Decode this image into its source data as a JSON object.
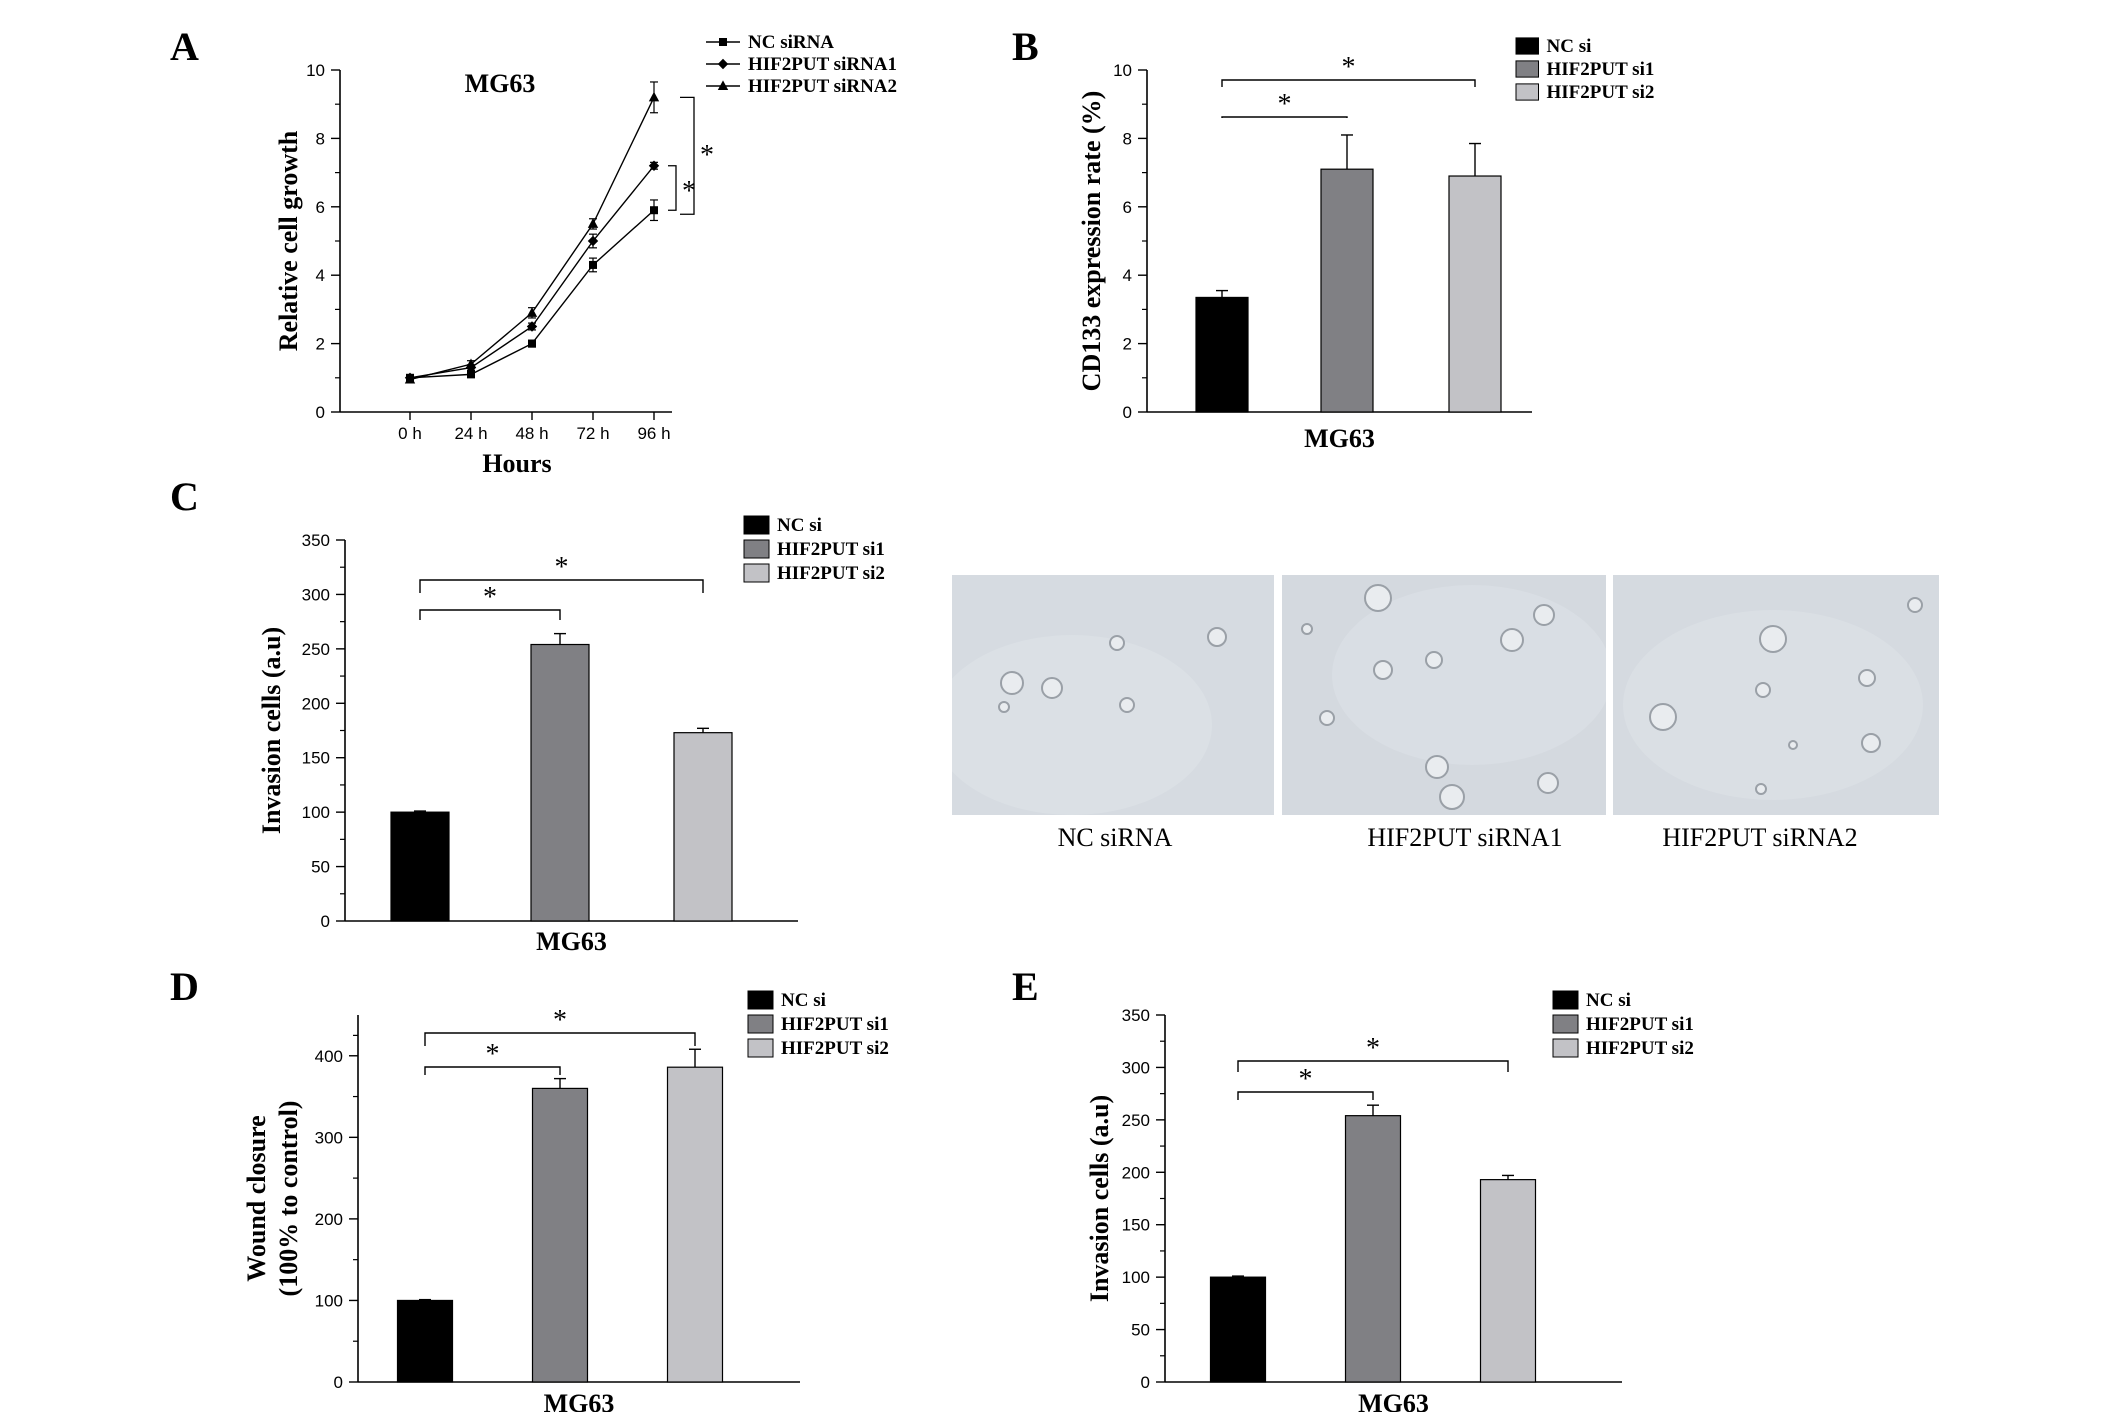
{
  "panels": {
    "A": "A",
    "B": "B",
    "C": "C",
    "D": "D",
    "E": "E"
  },
  "images": {
    "captions": [
      "NC siRNA",
      "HIF2PUT siRNA1",
      "HIF2PUT siRNA2"
    ]
  },
  "colors": {
    "black": "#000000",
    "dark_gray": "#808084",
    "light_gray": "#c2c2c6",
    "micro_bg": "#d4d9df"
  },
  "chart_data": [
    {
      "id": "A",
      "type": "line",
      "title": "MG63",
      "xlabel": "Hours",
      "ylabel": "Relative cell growth",
      "categories": [
        "0 h",
        "24 h",
        "48 h",
        "72 h",
        "96 h"
      ],
      "ylim": [
        0,
        10
      ],
      "yticks": [
        0,
        2,
        4,
        6,
        8,
        10
      ],
      "legend_position": "top-right",
      "series": [
        {
          "name": "NC siRNA",
          "marker": "square",
          "values": [
            1.0,
            1.1,
            2.0,
            4.3,
            5.9
          ],
          "errors": [
            0.05,
            0.08,
            0.1,
            0.2,
            0.3
          ]
        },
        {
          "name": "HIF2PUT siRNA1",
          "marker": "diamond",
          "values": [
            1.0,
            1.3,
            2.5,
            5.0,
            7.2
          ],
          "errors": [
            0.05,
            0.08,
            0.1,
            0.2,
            0.1
          ]
        },
        {
          "name": "HIF2PUT siRNA2",
          "marker": "triangle",
          "values": [
            0.95,
            1.4,
            2.9,
            5.5,
            9.2
          ],
          "errors": [
            0.05,
            0.1,
            0.15,
            0.15,
            0.45
          ]
        }
      ],
      "significance": [
        "*",
        "*"
      ]
    },
    {
      "id": "B",
      "type": "bar",
      "xlabel": "MG63",
      "ylabel": "CD133 expression rate (%)",
      "categories": [
        "NC si",
        "HIF2PUT si1",
        "HIF2PUT si2"
      ],
      "values": [
        3.35,
        7.1,
        6.9
      ],
      "errors": [
        0.2,
        1.0,
        0.95
      ],
      "ylim": [
        0,
        10
      ],
      "yticks": [
        0,
        2,
        4,
        6,
        8,
        10
      ],
      "legend_position": "top-right",
      "significance": [
        "*",
        "*"
      ]
    },
    {
      "id": "C",
      "type": "bar",
      "xlabel": "MG63",
      "ylabel": "Invasion cells (a.u)",
      "categories": [
        "NC si",
        "HIF2PUT si1",
        "HIF2PUT si2"
      ],
      "values": [
        100,
        254,
        173
      ],
      "errors": [
        1,
        10,
        4
      ],
      "ylim": [
        0,
        350
      ],
      "yticks": [
        0,
        50,
        100,
        150,
        200,
        250,
        300,
        350
      ],
      "legend_position": "top-right",
      "significance": [
        "*",
        "*"
      ]
    },
    {
      "id": "D",
      "type": "bar",
      "xlabel": "MG63",
      "ylabel": [
        "Wound closure",
        "(100% to control)"
      ],
      "categories": [
        "NC si",
        "HIF2PUT si1",
        "HIF2PUT si2"
      ],
      "values": [
        100,
        360,
        386
      ],
      "errors": [
        1,
        12,
        22
      ],
      "ylim": [
        0,
        450
      ],
      "yticks": [
        0,
        100,
        200,
        300,
        400
      ],
      "legend_position": "top-right",
      "significance": [
        "*",
        "*"
      ]
    },
    {
      "id": "E",
      "type": "bar",
      "xlabel": "MG63",
      "ylabel": "Invasion cells (a.u)",
      "categories": [
        "NC si",
        "HIF2PUT si1",
        "HIF2PUT si2"
      ],
      "values": [
        100,
        254,
        193
      ],
      "errors": [
        1,
        10,
        4
      ],
      "ylim": [
        0,
        350
      ],
      "yticks": [
        0,
        50,
        100,
        150,
        200,
        250,
        300,
        350
      ],
      "legend_position": "top-right",
      "significance": [
        "*",
        "*"
      ]
    }
  ]
}
